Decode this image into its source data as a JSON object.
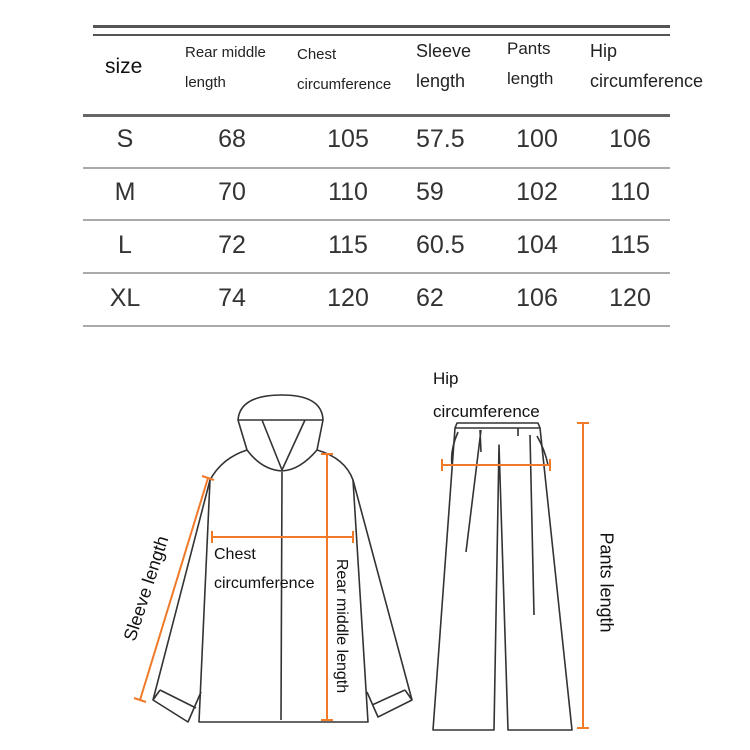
{
  "table": {
    "headers": [
      {
        "lines": [
          "size"
        ]
      },
      {
        "lines": [
          "Rear middle",
          "length"
        ]
      },
      {
        "lines": [
          "Chest",
          "circumference"
        ]
      },
      {
        "lines": [
          "Sleeve",
          "length"
        ]
      },
      {
        "lines": [
          "Pants",
          "length"
        ]
      },
      {
        "lines": [
          "Hip",
          "circumference"
        ]
      }
    ],
    "rows": [
      [
        "S",
        "68",
        "105",
        "57.5",
        "100",
        "106"
      ],
      [
        "M",
        "70",
        "110",
        "59",
        "102",
        "110"
      ],
      [
        "L",
        "72",
        "115",
        "60.5",
        "104",
        "115"
      ],
      [
        "XL",
        "74",
        "120",
        "62",
        "106",
        "120"
      ]
    ]
  },
  "diagram": {
    "jacket_labels": {
      "sleeve": "Sleeve length",
      "chest": [
        "Chest",
        "circumference"
      ],
      "rear": "Rear middle length"
    },
    "pants_labels": {
      "hip": [
        "Hip",
        "circumference"
      ],
      "pants": "Pants length"
    },
    "colors": {
      "measure": "#f07a2a",
      "outline": "#333333"
    }
  }
}
